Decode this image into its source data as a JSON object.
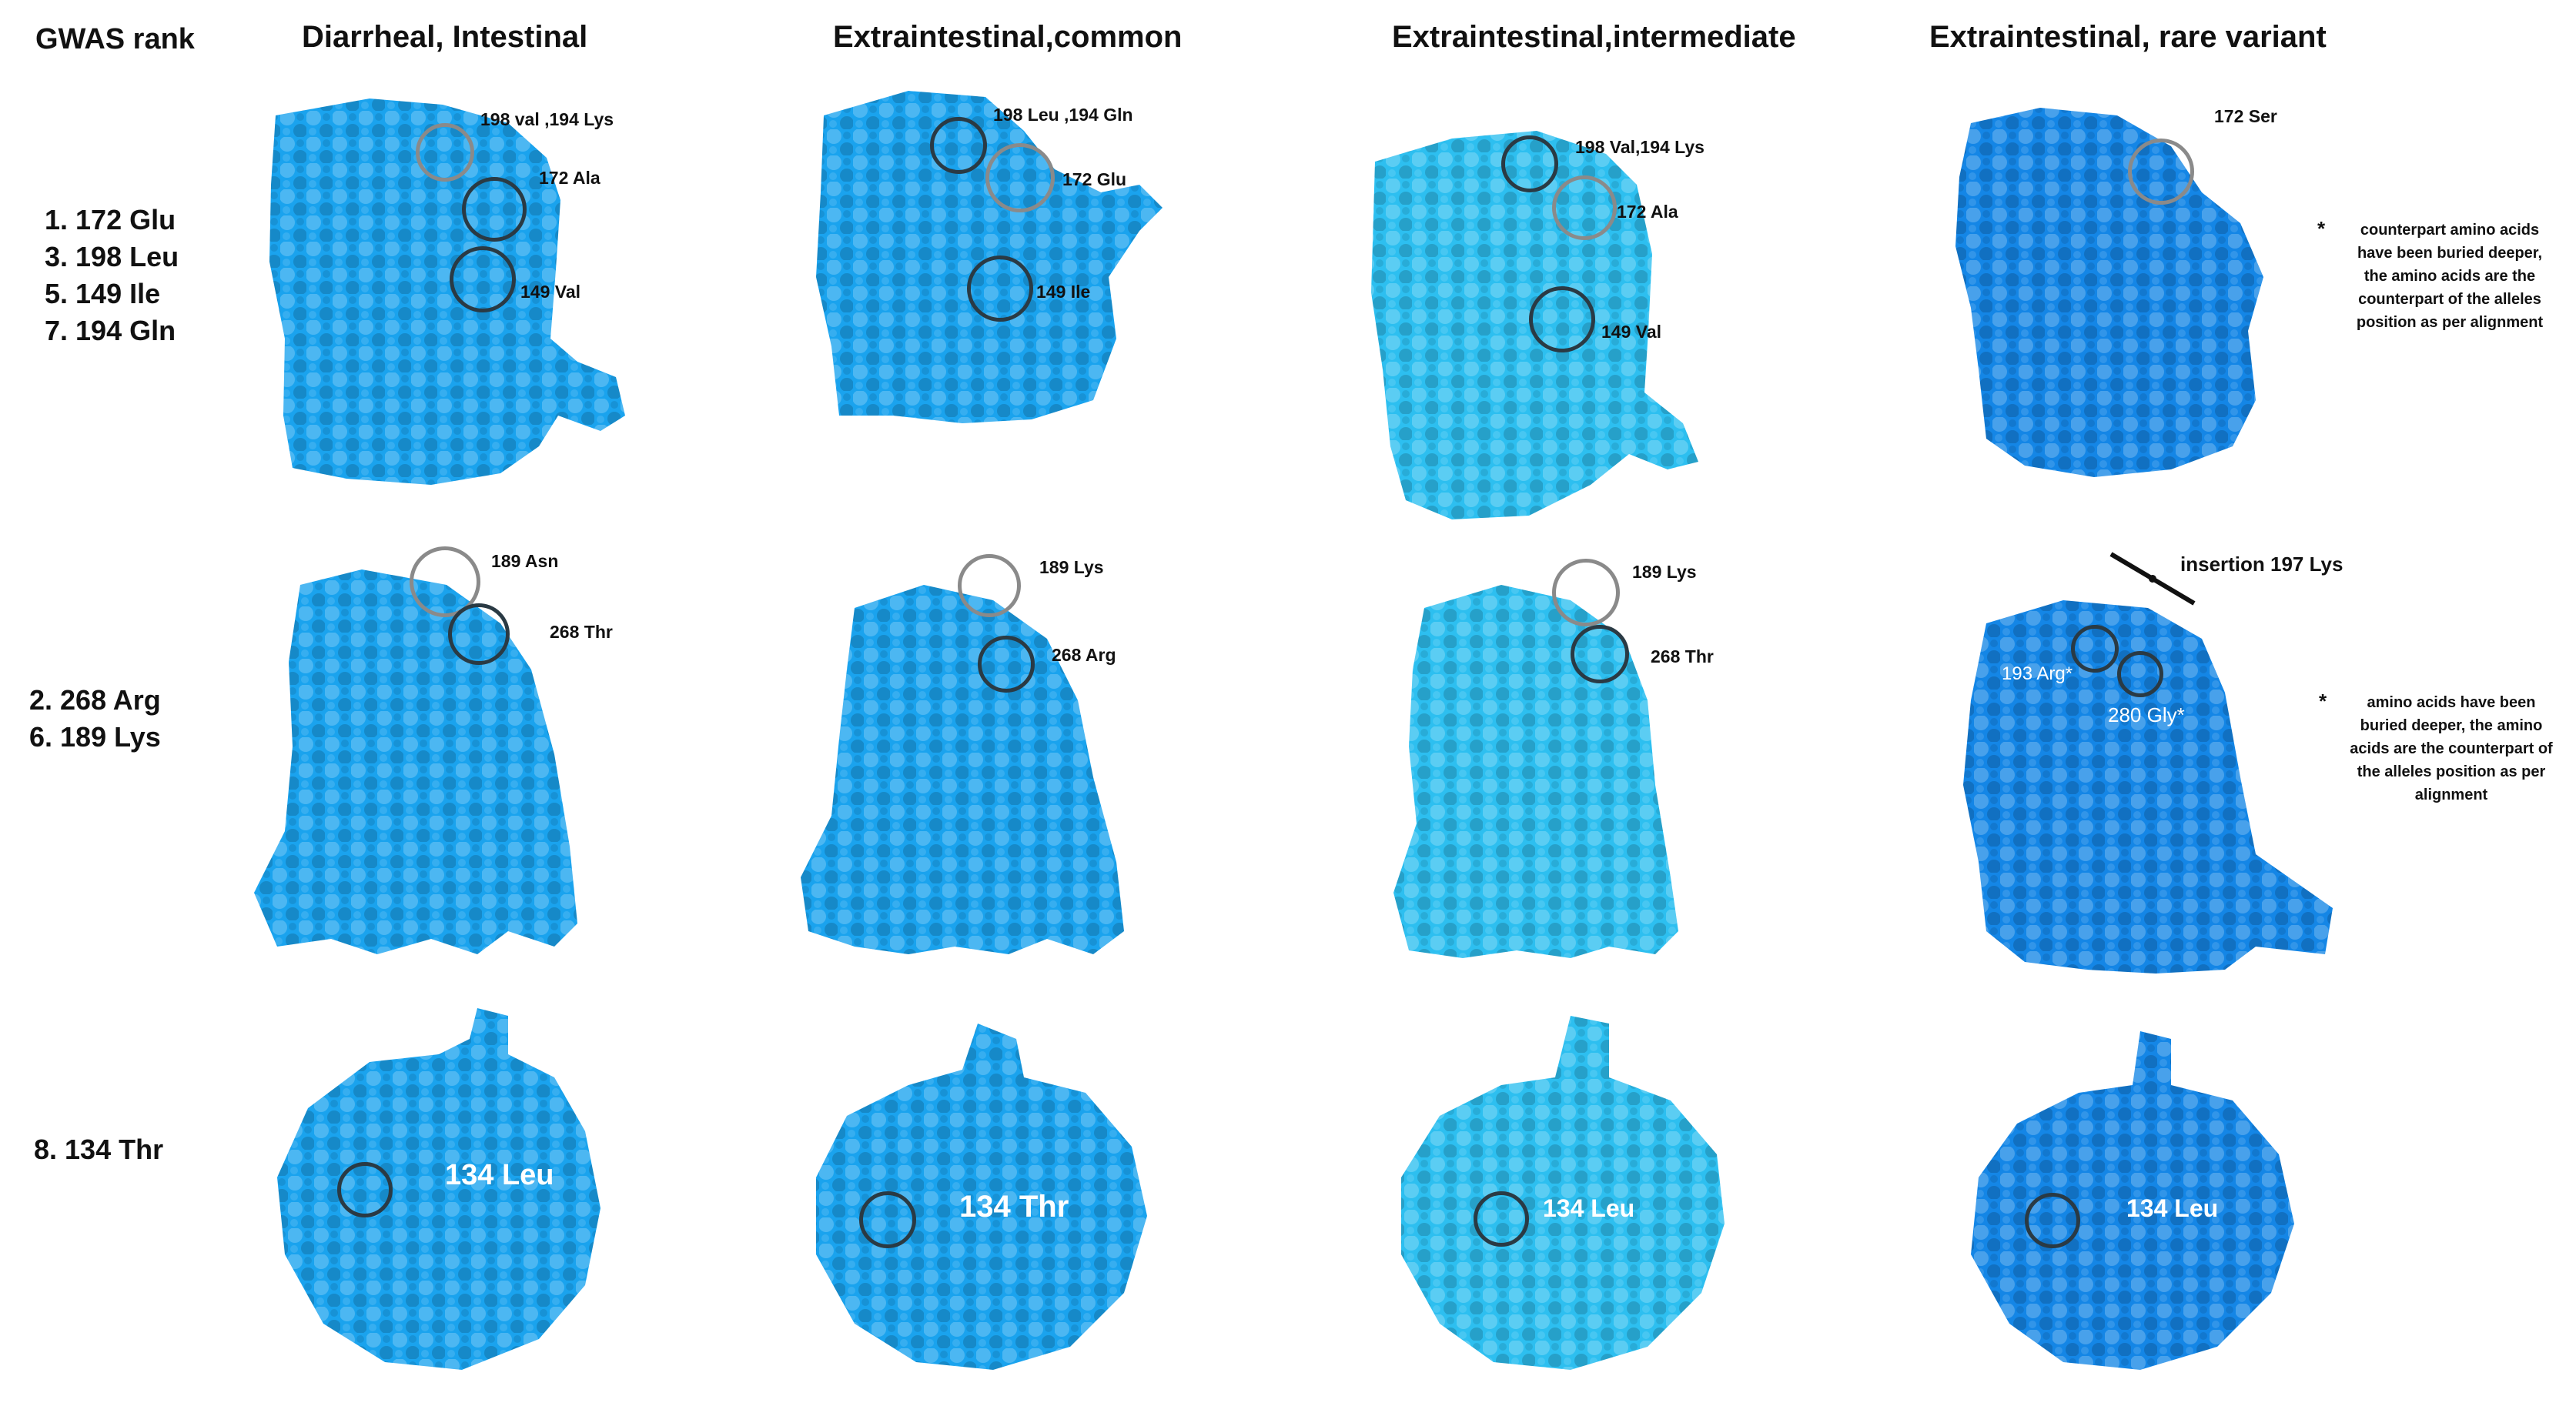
{
  "headers": {
    "gwas": "GWAS rank",
    "col1": "Diarrheal, Intestinal",
    "col2": "Extraintestinal,common",
    "col3": "Extraintestinal,intermediate",
    "col4": "Extraintestinal, rare variant"
  },
  "colors": {
    "blue_standard": "#1aa3ee",
    "blue_light": "#2dbff0",
    "blue_deep": "#1486e6"
  },
  "row1": {
    "rank": [
      "1. 172  Glu",
      "3. 198 Leu",
      "5. 149 Ile",
      "7. 194 Gln"
    ],
    "col1": {
      "a": "198 val ,194 Lys",
      "b": "172 Ala",
      "c": "149 Val"
    },
    "col2": {
      "a": "198 Leu ,194 Gln",
      "b": "172 Glu",
      "c": "149 Ile"
    },
    "col3": {
      "a": "198  Val,194 Lys",
      "b": "172 Ala",
      "c": "149 Val"
    },
    "col4": {
      "a": "172 Ser"
    },
    "note": {
      "star": "*",
      "lines": [
        "counterpart amino acids",
        "have been buried deeper,",
        "the amino acids are the",
        "counterpart of the alleles",
        "position as per alignment"
      ]
    }
  },
  "row2": {
    "rank": [
      "2.  268 Arg",
      "6. 189 Lys"
    ],
    "col1": {
      "a": "189 Asn",
      "b": "268 Thr"
    },
    "col2": {
      "a": "189 Lys",
      "b": "268 Arg"
    },
    "col3": {
      "a": "189 Lys",
      "b": "268 Thr"
    },
    "col4": {
      "ins": "insertion 197 Lys",
      "a": "193 Arg*",
      "b": "280 Gly*"
    },
    "note": {
      "star": "*",
      "lines": [
        "amino acids have been",
        "buried deeper, the amino",
        "acids are the counterpart of",
        "the alleles position as per",
        "alignment"
      ]
    }
  },
  "row3": {
    "rank": [
      "8. 134 Thr"
    ],
    "col1": {
      "a": "134 Leu"
    },
    "col2": {
      "a": "134  Thr"
    },
    "col3": {
      "a": "134 Leu"
    },
    "col4": {
      "a": "134 Leu"
    }
  }
}
